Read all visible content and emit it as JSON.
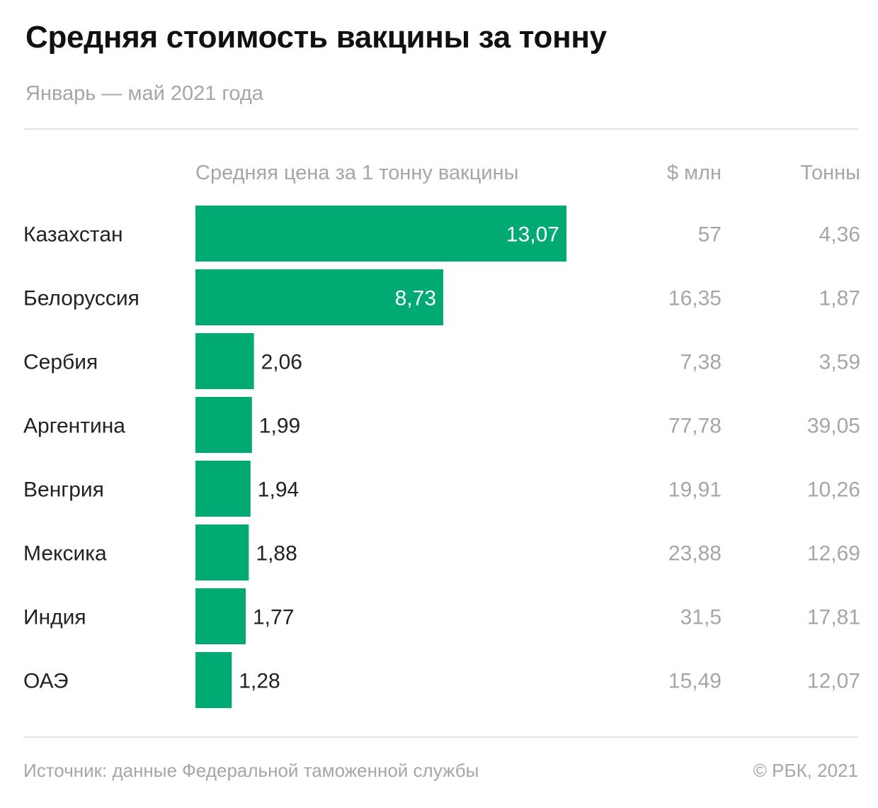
{
  "header": {
    "title": "Средняя стоимость вакцины за тонну",
    "subtitle": "Январь — май 2021 года"
  },
  "columns": {
    "price": "Средняя цена за 1 тонну вакцины",
    "usd": "$ млн",
    "tons": "Тонны"
  },
  "footer": {
    "source": "Источник: данные Федеральной таможенной службы",
    "copyright": "© РБК, 2021"
  },
  "colors": {
    "bar": "#00aa72",
    "muted_text": "#a6a6a6",
    "text": "#222222"
  },
  "chart_data": {
    "type": "bar",
    "orientation": "horizontal",
    "categories": [
      "Казахстан",
      "Белоруссия",
      "Сербия",
      "Аргентина",
      "Венгрия",
      "Мексика",
      "Индия",
      "ОАЭ"
    ],
    "series": [
      {
        "name": "Средняя цена за 1 тонну вакцины",
        "values": [
          13.07,
          8.73,
          2.06,
          1.99,
          1.94,
          1.88,
          1.77,
          1.28
        ],
        "labels": [
          "13,07",
          "8,73",
          "2,06",
          "1,99",
          "1,94",
          "1,88",
          "1,77",
          "1,28"
        ]
      }
    ],
    "table_columns": [
      {
        "name": "$ млн",
        "values": [
          "57",
          "16,35",
          "7,38",
          "77,78",
          "19,91",
          "23,88",
          "31,5",
          "15,49"
        ]
      },
      {
        "name": "Тонны",
        "values": [
          "4,36",
          "1,87",
          "3,59",
          "39,05",
          "10,26",
          "12,69",
          "17,81",
          "12,07"
        ]
      }
    ],
    "grid": false,
    "legend": "none"
  }
}
